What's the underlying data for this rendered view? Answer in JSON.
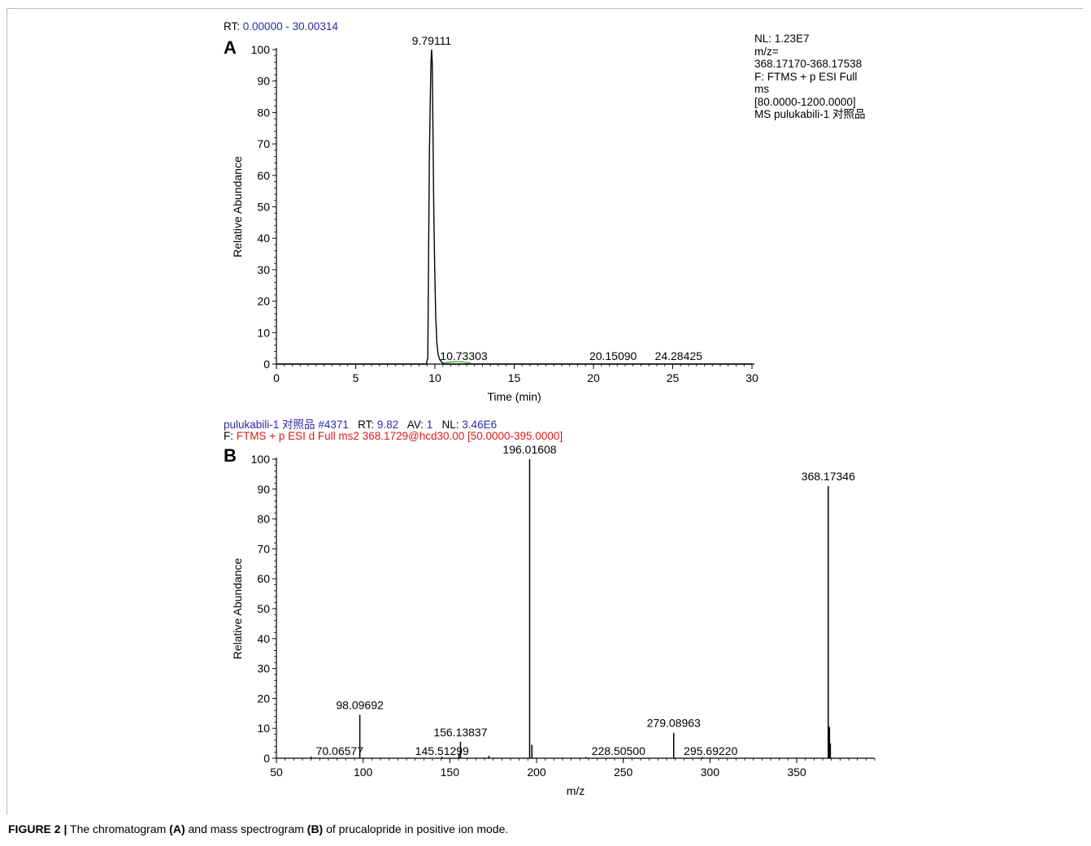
{
  "panel_a": {
    "letter": "A",
    "rt_label": "RT:",
    "rt_range": "0.00000 - 30.00314",
    "nl_block": [
      "NL: 1.23E7",
      "m/z=",
      "368.17170-368.17538",
      "F: FTMS + p ESI Full",
      "ms",
      "[80.0000-1200.0000]",
      "MS pulukabili-1 对照品"
    ]
  },
  "panel_b": {
    "letter": "B",
    "header_line1": {
      "file": "pulukabili-1 对照品",
      "scan_label": "#4371",
      "rt_label": "RT:",
      "rt_value": "9.82",
      "av_label": "AV:",
      "av_value": "1",
      "nl_label": "NL:",
      "nl_value": "3.46E6"
    },
    "header_line2": {
      "f_label": "F:",
      "filter": "FTMS + p ESI d Full ms2 368.1729@hcd30.00 [50.0000-395.0000]"
    }
  },
  "caption": {
    "label": "FIGURE 2 |",
    "text_1": " The chromatogram ",
    "ref_a": "(A)",
    "text_2": " and mass spectrogram ",
    "ref_b": "(B)",
    "text_3": " of prucalopride in positive ion mode."
  },
  "colors": {
    "header_blue": "#2a2aa8",
    "header_red": "#e01818",
    "trace": "#000000",
    "minor_peak": "#2e9e2e"
  },
  "chart_data": [
    {
      "type": "line",
      "xlabel": "Time (min)",
      "ylabel": "Relative Abundance",
      "xlim": [
        0,
        30
      ],
      "ylim": [
        0,
        100
      ],
      "x_ticks": [
        0,
        5,
        10,
        15,
        20,
        25,
        30
      ],
      "y_ticks": [
        0,
        10,
        20,
        30,
        40,
        50,
        60,
        70,
        80,
        90,
        100
      ],
      "series": [
        {
          "x": [
            0,
            9.45,
            9.55,
            9.6,
            9.65,
            9.7,
            9.75,
            9.79,
            9.83,
            9.88,
            9.93,
            9.98,
            10.05,
            10.12,
            10.2,
            10.3,
            10.45,
            10.6,
            30
          ],
          "y": [
            0,
            0,
            2,
            35,
            66,
            82,
            96,
            100,
            96,
            72,
            48,
            32,
            15,
            7,
            3,
            1.5,
            0.5,
            0,
            0
          ]
        }
      ],
      "peak_labels": [
        {
          "x": 9.79111,
          "y": 100,
          "text": "9.79111"
        },
        {
          "x": 10.73303,
          "y": 0.4,
          "text": "10.73303"
        },
        {
          "x": 20.1509,
          "y": 0,
          "text": "20.15090"
        },
        {
          "x": 24.28425,
          "y": 0,
          "text": "24.28425"
        }
      ]
    },
    {
      "type": "bar",
      "xlabel": "m/z",
      "ylabel": "Relative Abundance",
      "xlim": [
        50,
        395
      ],
      "ylim": [
        0,
        100
      ],
      "x_ticks": [
        50,
        100,
        150,
        200,
        250,
        300,
        350
      ],
      "y_ticks": [
        0,
        10,
        20,
        30,
        40,
        50,
        60,
        70,
        80,
        90,
        100
      ],
      "peaks": [
        {
          "mz": 70.06577,
          "intensity": 0.5
        },
        {
          "mz": 98.09692,
          "intensity": 14.5
        },
        {
          "mz": 145.51299,
          "intensity": 0.5
        },
        {
          "mz": 155.2,
          "intensity": 1.5
        },
        {
          "mz": 156.13837,
          "intensity": 5.5
        },
        {
          "mz": 172.5,
          "intensity": 0.8
        },
        {
          "mz": 196.01608,
          "intensity": 100
        },
        {
          "mz": 197.3,
          "intensity": 4.5
        },
        {
          "mz": 228.505,
          "intensity": 0.4
        },
        {
          "mz": 279.08963,
          "intensity": 8.5
        },
        {
          "mz": 295.6922,
          "intensity": 0.4
        },
        {
          "mz": 368.17346,
          "intensity": 91
        },
        {
          "mz": 368.9,
          "intensity": 10.5
        },
        {
          "mz": 369.4,
          "intensity": 5
        }
      ],
      "peak_labels": [
        {
          "x": 70.06577,
          "y": 0.5,
          "text": "70.06577"
        },
        {
          "x": 98.09692,
          "y": 14.5,
          "text": "98.09692"
        },
        {
          "x": 145.51299,
          "y": 0.5,
          "text": "145.51299"
        },
        {
          "x": 156.13837,
          "y": 5.5,
          "text": "156.13837"
        },
        {
          "x": 196.01608,
          "y": 100,
          "text": "196.01608"
        },
        {
          "x": 228.505,
          "y": 0.4,
          "text": "228.50500"
        },
        {
          "x": 279.08963,
          "y": 8.5,
          "text": "279.08963"
        },
        {
          "x": 295.6922,
          "y": 0.4,
          "text": "295.69220"
        },
        {
          "x": 368.17346,
          "y": 91,
          "text": "368.17346"
        }
      ]
    }
  ]
}
